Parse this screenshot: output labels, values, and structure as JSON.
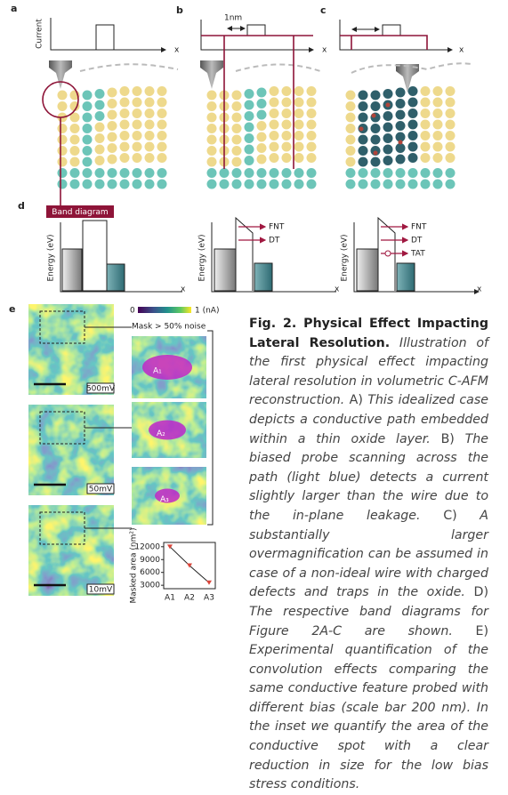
{
  "panels": {
    "a": "a",
    "b": "b",
    "c": "c",
    "d": "d",
    "e": "e"
  },
  "top": {
    "ylabel": "Current",
    "x_a": "x",
    "x_b": "x",
    "x_c": "x",
    "scale": "1nm"
  },
  "band": {
    "label": "Band diagram",
    "ylabel_1": "Energy (eV)",
    "ylabel_2": "Energy (eV)",
    "ylabel_3": "Energy (eV)",
    "x_1": "x",
    "x_2": "x",
    "x_3": "x",
    "fnt_2": "FNT",
    "dt_2": "DT",
    "fnt_3": "FNT",
    "dt_3": "DT",
    "tat_3": "TAT"
  },
  "maps": {
    "cbar_min": "0",
    "cbar_max": "1 (nA)",
    "mask": "Mask > 50% noise",
    "bias": [
      "500mV",
      "50mV",
      "10mV"
    ],
    "spots": [
      "A₁",
      "A₂",
      "A₃"
    ]
  },
  "inset_chart": {
    "type": "line",
    "ylabel": "Masked area (nm²)",
    "categories": [
      "A1",
      "A2",
      "A3"
    ],
    "values": [
      12000,
      7600,
      3600
    ],
    "ylim": [
      2200,
      13000
    ],
    "yticks": [
      12000,
      9000,
      6000,
      3000
    ],
    "color": "#d9453a"
  },
  "caption": {
    "title": "Fig. 2. Physical Effect Impacting Lateral Resolution.",
    "body": [
      {
        "text": " Illustration of the first physical effect impacting lateral resolution in volumetric C-AFM reconstruction. ",
        "style": "italic"
      },
      {
        "text": "A)",
        "style": "normal"
      },
      {
        "text": " This idealized case depicts a conductive path embedded within a thin oxide layer. ",
        "style": "italic"
      },
      {
        "text": "B)",
        "style": "normal"
      },
      {
        "text": " The biased probe scanning across the path (light blue) detects a current slightly larger than the wire due to the in-plane leakage. ",
        "style": "italic"
      },
      {
        "text": "C)",
        "style": "normal"
      },
      {
        "text": " A substantially larger overmagnification can be assumed in case of a non-ideal wire with charged defects and traps in the oxide. ",
        "style": "italic"
      },
      {
        "text": "D)",
        "style": "normal"
      },
      {
        "text": " The respective band diagrams for Figure 2A-C are shown. ",
        "style": "italic"
      },
      {
        "text": "E)",
        "style": "normal"
      },
      {
        "text": " Experimental quantification of the convolution effects comparing the same conductive feature probed with different bias (scale bar 200 nm). In the inset we quantify the area of the conductive spot with a clear reduction in size for the low bias stress conditions.",
        "style": "italic"
      }
    ]
  }
}
